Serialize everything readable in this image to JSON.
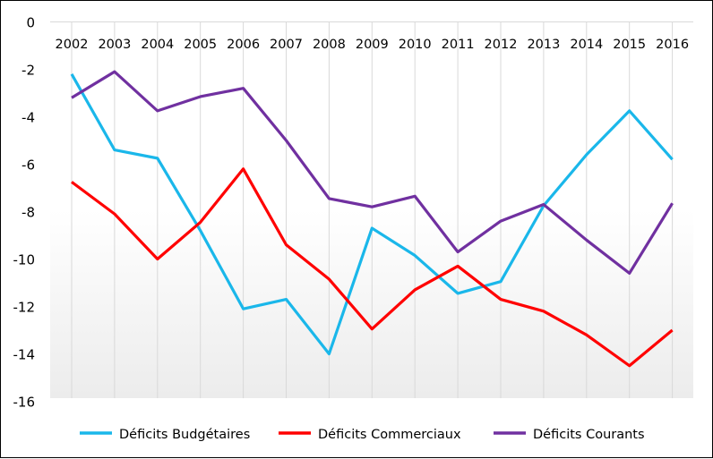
{
  "chart_data": {
    "type": "line",
    "title": "",
    "xlabel": "",
    "ylabel": "",
    "ylim": [
      -16,
      0
    ],
    "yticks": [
      "0",
      "-2",
      "-4",
      "-6",
      "-8",
      "-10",
      "-12",
      "-14",
      "-16"
    ],
    "categories": [
      "2002",
      "2003",
      "2004",
      "2005",
      "2006",
      "2007",
      "2008",
      "2009",
      "2010",
      "2011",
      "2012",
      "2013",
      "2014",
      "2015",
      "2016"
    ],
    "grid": "vertical",
    "legend": "bottom",
    "series": [
      {
        "name": "Déficits Budgétaires",
        "color": "#1ab7ea",
        "values": [
          -2.2,
          -5.4,
          -5.75,
          -8.8,
          -12.1,
          -11.7,
          -14.0,
          -8.7,
          -9.85,
          -11.45,
          -10.95,
          -7.75,
          -5.6,
          -3.75,
          -5.8
        ]
      },
      {
        "name": "Déficits Commerciaux",
        "color": "#ff0000",
        "values": [
          -6.75,
          -8.1,
          -10.0,
          -8.45,
          -6.2,
          -9.4,
          -10.85,
          -12.95,
          -11.3,
          -10.3,
          -11.7,
          -12.2,
          -13.2,
          -14.5,
          -13.0
        ]
      },
      {
        "name": "Déficits Courants",
        "color": "#7030a0",
        "values": [
          -3.2,
          -2.1,
          -3.75,
          -3.15,
          -2.8,
          -5.0,
          -7.45,
          -7.8,
          -7.35,
          -9.7,
          -8.4,
          -7.7,
          -9.2,
          -10.6,
          -7.65
        ]
      }
    ]
  }
}
